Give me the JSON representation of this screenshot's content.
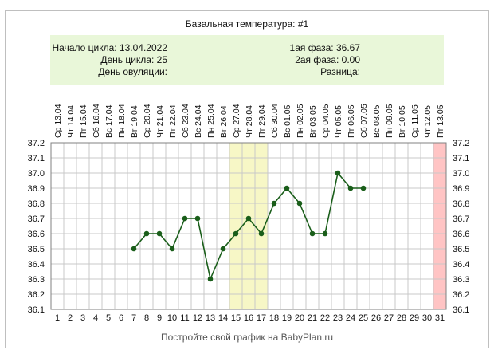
{
  "colors": {
    "frame_border": "#bfbfbf",
    "info_background": "#e9f7d9",
    "grid_line": "#c8c8c8",
    "plot_border": "#808080",
    "highlight_fertile": "#f7f7c6",
    "highlight_menstruation": "#ffc4c4",
    "series_line": "#1a5e1a",
    "series_marker": "#1a5e1a",
    "text": "#111111",
    "footer_text": "#555555"
  },
  "header": {
    "title": "Базальная температура: #1"
  },
  "info": {
    "cycle_start": "Начало цикла: 13.04.2022",
    "cycle_day": "День цикла: 25",
    "ovulation_day": "День овуляции:",
    "phase1": "1ая фаза: 36.67",
    "phase2": "2ая фаза: 0.00",
    "difference": "Разница:"
  },
  "footer": {
    "text": "Постройте свой график на BabyPlan.ru"
  },
  "chart_data": {
    "type": "line",
    "title": "Базальная температура: #1",
    "x_days": [
      1,
      2,
      3,
      4,
      5,
      6,
      7,
      8,
      9,
      10,
      11,
      12,
      13,
      14,
      15,
      16,
      17,
      18,
      19,
      20,
      21,
      22,
      23,
      24,
      25,
      26,
      27,
      28,
      29,
      30,
      31
    ],
    "date_labels": [
      "Ср 13.04",
      "Чт 14.04",
      "Пт 15.04",
      "Сб 16.04",
      "Вс 17.04",
      "Пн 18.04",
      "Вт 19.04",
      "Ср 20.04",
      "Чт 21.04",
      "Пт 22.04",
      "Сб 23.04",
      "Вс 24.04",
      "Пн 25.04",
      "Вт 26.04",
      "Ср 27.04",
      "Чт 28.04",
      "Пт 29.04",
      "Сб 30.04",
      "Вс 01.05",
      "Пн 02.05",
      "Вт 03.05",
      "Ср 04.05",
      "Чт 05.05",
      "Пт 06.05",
      "Сб 07.05",
      "Вс 08.05",
      "Пн 09.05",
      "Вт 10.05",
      "Ср 11.05",
      "Чт 12.05",
      "Пт 13.05"
    ],
    "y_ticks": [
      "37.2",
      "37.1",
      "37.0",
      "36.9",
      "36.8",
      "36.7",
      "36.6",
      "36.5",
      "36.4",
      "36.3",
      "36.2",
      "36.1"
    ],
    "ylim": [
      36.1,
      37.2
    ],
    "grid": true,
    "series": [
      {
        "points": [
          {
            "day": 7,
            "temp": 36.5
          },
          {
            "day": 8,
            "temp": 36.6
          },
          {
            "day": 9,
            "temp": 36.6
          },
          {
            "day": 10,
            "temp": 36.5
          },
          {
            "day": 11,
            "temp": 36.7
          },
          {
            "day": 12,
            "temp": 36.7
          },
          {
            "day": 13,
            "temp": 36.3
          },
          {
            "day": 14,
            "temp": 36.5
          },
          {
            "day": 15,
            "temp": 36.6
          },
          {
            "day": 16,
            "temp": 36.7
          },
          {
            "day": 17,
            "temp": 36.6
          },
          {
            "day": 18,
            "temp": 36.8
          },
          {
            "day": 19,
            "temp": 36.9
          },
          {
            "day": 20,
            "temp": 36.8
          },
          {
            "day": 21,
            "temp": 36.6
          },
          {
            "day": 22,
            "temp": 36.6
          },
          {
            "day": 23,
            "temp": 37.0
          },
          {
            "day": 24,
            "temp": 36.9
          },
          {
            "day": 25,
            "temp": 36.9
          }
        ]
      }
    ],
    "highlight_fertile_days": [
      15,
      17
    ],
    "highlight_menstruation_days": [
      31,
      31
    ]
  }
}
